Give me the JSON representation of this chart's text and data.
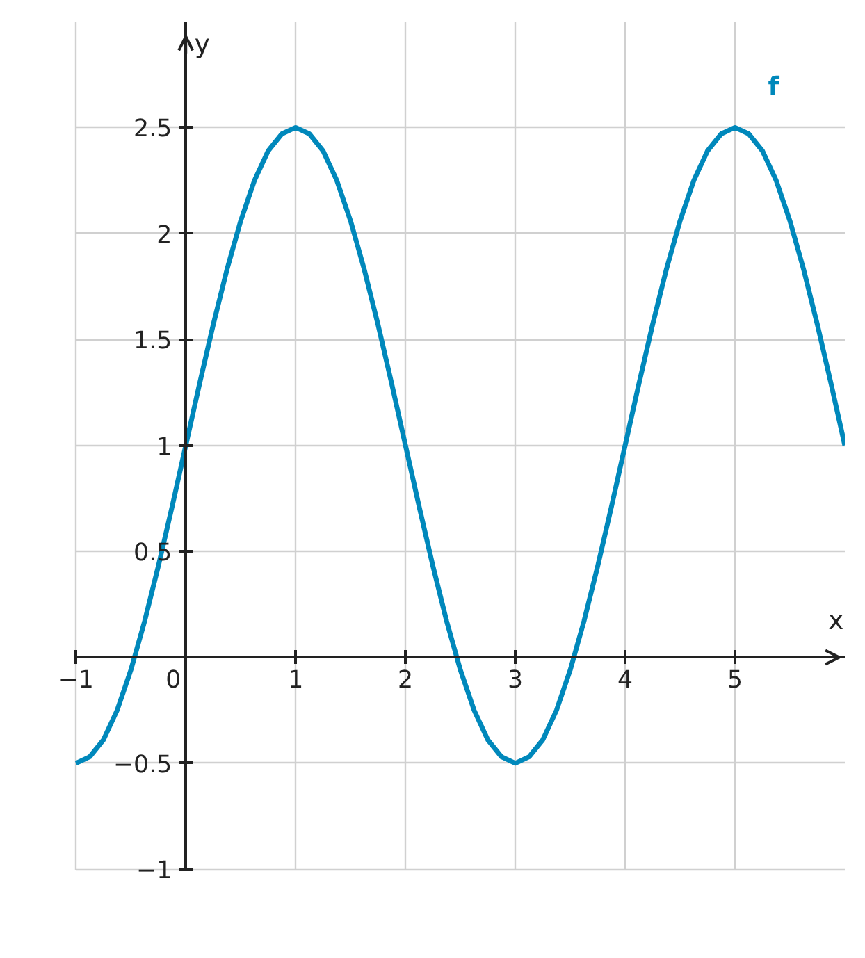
{
  "chart_data": {
    "type": "line",
    "xlabel": "x",
    "ylabel": "y",
    "x": [
      -1,
      -0.875,
      -0.75,
      -0.625,
      -0.5,
      -0.375,
      -0.25,
      -0.125,
      0,
      0.125,
      0.25,
      0.375,
      0.5,
      0.625,
      0.75,
      0.875,
      1,
      1.125,
      1.25,
      1.375,
      1.5,
      1.625,
      1.75,
      1.875,
      2,
      2.125,
      2.25,
      2.375,
      2.5,
      2.625,
      2.75,
      2.875,
      3,
      3.125,
      3.25,
      3.375,
      3.5,
      3.625,
      3.75,
      3.875,
      4,
      4.125,
      4.25,
      4.375,
      4.5,
      4.625,
      4.75,
      4.875,
      5,
      5.125,
      5.25,
      5.375,
      5.5,
      5.625,
      5.75,
      5.875,
      6
    ],
    "series": [
      {
        "name": "f",
        "color": "#0088bb",
        "values": [
          -0.5,
          -0.47,
          -0.39,
          -0.25,
          -0.06,
          0.17,
          0.43,
          0.71,
          1,
          1.29,
          1.57,
          1.83,
          2.06,
          2.25,
          2.39,
          2.47,
          2.5,
          2.47,
          2.39,
          2.25,
          2.06,
          1.83,
          1.57,
          1.29,
          1,
          0.71,
          0.43,
          0.17,
          -0.06,
          -0.25,
          -0.39,
          -0.47,
          -0.5,
          -0.47,
          -0.39,
          -0.25,
          -0.06,
          0.17,
          0.43,
          0.71,
          1,
          1.29,
          1.57,
          1.83,
          2.06,
          2.25,
          2.39,
          2.47,
          2.5,
          2.47,
          2.39,
          2.25,
          2.06,
          1.83,
          1.57,
          1.29,
          1
        ]
      }
    ],
    "xlim": [
      -1,
      6
    ],
    "ylim": [
      -1,
      3
    ],
    "xticks": [
      {
        "value": -1,
        "label": "−1"
      },
      0,
      1,
      2,
      3,
      4,
      5
    ],
    "yticks": [
      {
        "value": -1,
        "label": "−1"
      },
      {
        "value": -0.5,
        "label": "−0.5"
      },
      0.5,
      1,
      1.5,
      2,
      2.5
    ],
    "grid": true,
    "legend": false,
    "line_style": "solid",
    "marker": "none"
  }
}
